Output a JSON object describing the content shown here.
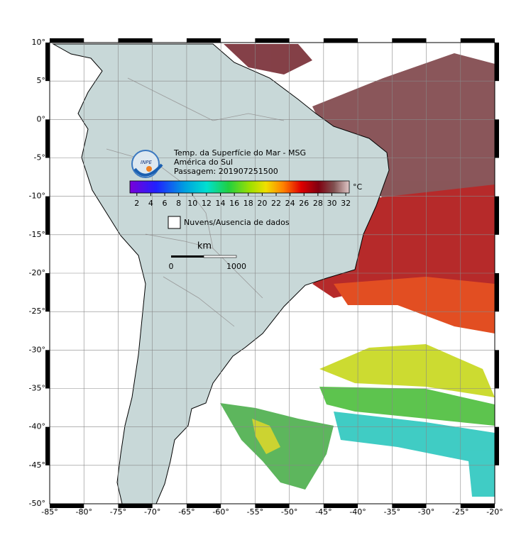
{
  "map": {
    "title": "Temp. da Superfície do Mar - MSG",
    "region": "América do Sul",
    "pass": "Passagem: 201907251500",
    "logo": "INPE",
    "lonlim": [
      -85,
      -20
    ],
    "latlim": [
      -50,
      10
    ],
    "lon_ticks": [
      {
        "value": -85,
        "label": "-85°"
      },
      {
        "value": -80,
        "label": "-80°"
      },
      {
        "value": -75,
        "label": "-75°"
      },
      {
        "value": -70,
        "label": "-70°"
      },
      {
        "value": -65,
        "label": "-65°"
      },
      {
        "value": -60,
        "label": "-60°"
      },
      {
        "value": -55,
        "label": "-55°"
      },
      {
        "value": -50,
        "label": "-50°"
      },
      {
        "value": -45,
        "label": "-45°"
      },
      {
        "value": -40,
        "label": "-40°"
      },
      {
        "value": -35,
        "label": "-35°"
      },
      {
        "value": -30,
        "label": "-30°"
      },
      {
        "value": -25,
        "label": "-25°"
      },
      {
        "value": -20,
        "label": "-20°"
      }
    ],
    "lat_ticks": [
      {
        "value": 10,
        "label": "10°"
      },
      {
        "value": 5,
        "label": "5°"
      },
      {
        "value": 0,
        "label": "0°"
      },
      {
        "value": -5,
        "label": "-5°"
      },
      {
        "value": -10,
        "label": "-10°"
      },
      {
        "value": -15,
        "label": "-15°"
      },
      {
        "value": -20,
        "label": "-20°"
      },
      {
        "value": -25,
        "label": "-25°"
      },
      {
        "value": -30,
        "label": "-30°"
      },
      {
        "value": -35,
        "label": "-35°"
      },
      {
        "value": -40,
        "label": "-40°"
      },
      {
        "value": -45,
        "label": "-45°"
      },
      {
        "value": -50,
        "label": "-50°"
      }
    ],
    "colorbar": {
      "unit": "°C",
      "range": [
        1,
        32.5
      ],
      "ticks": [
        2,
        4,
        6,
        8,
        10,
        12,
        14,
        16,
        18,
        20,
        22,
        24,
        26,
        28,
        30,
        32
      ]
    },
    "legend": "Nuvens/Ausencia de dados",
    "scale": {
      "unit": "km",
      "start": "0",
      "end": "1000"
    }
  }
}
